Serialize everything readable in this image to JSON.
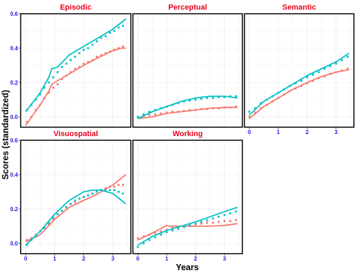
{
  "chart_data": {
    "type": "line",
    "xlabel": "Years",
    "ylabel": "Scores (standardized)",
    "colors": {
      "series_a": "#F8766D",
      "series_b": "#00BFC4",
      "title": "#E8001C",
      "ticks": "#1A1AE6"
    },
    "grid": true,
    "x_ticks": [
      "0",
      "1",
      "2",
      "3"
    ],
    "panels": [
      {
        "title": "Episodic",
        "y_ticks": [
          "0.0",
          "0.2",
          "0.4",
          "0.6"
        ],
        "series": [
          {
            "color": "series_a",
            "line_x": [
              0,
              0.5,
              0.8,
              0.9,
              1.1,
              1.5,
              2.0,
              2.5,
              3.0,
              3.3,
              3.45
            ],
            "line_y": [
              -0.05,
              0.07,
              0.15,
              0.19,
              0.21,
              0.25,
              0.3,
              0.345,
              0.385,
              0.4,
              0.4
            ],
            "points_x": [
              0.05,
              0.2,
              0.35,
              0.5,
              0.65,
              0.8,
              0.95,
              1.1,
              1.25,
              1.4,
              1.55,
              1.7,
              1.85,
              2.0,
              2.15,
              2.3,
              2.45,
              2.6,
              2.75,
              2.9,
              3.05,
              3.2,
              3.35
            ],
            "points_y": [
              -0.03,
              0.0,
              0.04,
              0.07,
              0.11,
              0.14,
              0.17,
              0.19,
              0.22,
              0.24,
              0.26,
              0.28,
              0.29,
              0.31,
              0.32,
              0.33,
              0.35,
              0.36,
              0.37,
              0.38,
              0.39,
              0.4,
              0.41
            ]
          },
          {
            "color": "series_b",
            "line_x": [
              0,
              0.5,
              0.8,
              0.9,
              1.1,
              1.5,
              2.0,
              2.5,
              3.0,
              3.45
            ],
            "line_y": [
              0.03,
              0.14,
              0.23,
              0.28,
              0.29,
              0.36,
              0.41,
              0.46,
              0.51,
              0.57
            ],
            "points_x": [
              0.05,
              0.2,
              0.35,
              0.5,
              0.65,
              0.8,
              0.95,
              1.1,
              1.25,
              1.4,
              1.55,
              1.7,
              1.85,
              2.0,
              2.15,
              2.3,
              2.45,
              2.6,
              2.75,
              2.9,
              3.05,
              3.2,
              3.35
            ],
            "points_y": [
              0.04,
              0.07,
              0.1,
              0.13,
              0.17,
              0.2,
              0.23,
              0.26,
              0.29,
              0.31,
              0.33,
              0.35,
              0.37,
              0.39,
              0.4,
              0.42,
              0.44,
              0.46,
              0.47,
              0.49,
              0.5,
              0.52,
              0.53
            ]
          }
        ]
      },
      {
        "title": "Perceptual",
        "y_ticks": [],
        "series": [
          {
            "color": "series_a",
            "line_x": [
              0,
              0.5,
              1.0,
              1.5,
              2.0,
              2.5,
              3.0,
              3.45
            ],
            "line_y": [
              -0.01,
              0.0,
              0.02,
              0.03,
              0.04,
              0.05,
              0.055,
              0.055
            ],
            "points_x": [
              0.0,
              0.2,
              0.4,
              0.6,
              0.8,
              1.0,
              1.2,
              1.4,
              1.6,
              1.8,
              2.0,
              2.2,
              2.4,
              2.6,
              2.8,
              3.0,
              3.2,
              3.4
            ],
            "points_y": [
              0.0,
              0.005,
              0.01,
              0.015,
              0.02,
              0.025,
              0.03,
              0.03,
              0.035,
              0.04,
              0.04,
              0.045,
              0.045,
              0.05,
              0.05,
              0.055,
              0.055,
              0.06
            ]
          },
          {
            "color": "series_b",
            "line_x": [
              0,
              0.5,
              1.0,
              1.5,
              2.0,
              2.5,
              3.0,
              3.45
            ],
            "line_y": [
              -0.01,
              0.03,
              0.06,
              0.09,
              0.11,
              0.12,
              0.12,
              0.11
            ],
            "points_x": [
              0.0,
              0.2,
              0.4,
              0.6,
              0.8,
              1.0,
              1.2,
              1.4,
              1.6,
              1.8,
              2.0,
              2.2,
              2.4,
              2.6,
              2.8,
              3.0,
              3.2,
              3.4
            ],
            "points_y": [
              0.0,
              0.015,
              0.03,
              0.04,
              0.05,
              0.06,
              0.07,
              0.08,
              0.09,
              0.095,
              0.1,
              0.105,
              0.11,
              0.11,
              0.115,
              0.115,
              0.12,
              0.12
            ]
          }
        ]
      },
      {
        "title": "Semantic",
        "y_ticks": [],
        "series": [
          {
            "color": "series_a",
            "line_x": [
              0,
              0.5,
              1.0,
              1.5,
              2.0,
              2.5,
              3.0,
              3.45
            ],
            "line_y": [
              -0.01,
              0.06,
              0.11,
              0.16,
              0.2,
              0.235,
              0.26,
              0.275
            ],
            "points_x": [
              0.0,
              0.2,
              0.4,
              0.6,
              0.8,
              1.0,
              1.2,
              1.4,
              1.6,
              1.8,
              2.0,
              2.2,
              2.4,
              2.6,
              2.8,
              3.0,
              3.2,
              3.4
            ],
            "points_y": [
              0.0,
              0.025,
              0.05,
              0.07,
              0.09,
              0.11,
              0.13,
              0.15,
              0.165,
              0.18,
              0.195,
              0.21,
              0.225,
              0.235,
              0.25,
              0.26,
              0.27,
              0.28
            ]
          },
          {
            "color": "series_b",
            "line_x": [
              0,
              0.5,
              1.0,
              1.5,
              2.0,
              2.5,
              3.0,
              3.45
            ],
            "line_y": [
              0.01,
              0.09,
              0.14,
              0.19,
              0.24,
              0.28,
              0.32,
              0.37
            ],
            "points_x": [
              0.0,
              0.2,
              0.4,
              0.6,
              0.8,
              1.0,
              1.2,
              1.4,
              1.6,
              1.8,
              2.0,
              2.2,
              2.4,
              2.6,
              2.8,
              3.0,
              3.2,
              3.4
            ],
            "points_y": [
              0.03,
              0.05,
              0.08,
              0.1,
              0.12,
              0.14,
              0.16,
              0.18,
              0.195,
              0.21,
              0.23,
              0.245,
              0.26,
              0.28,
              0.295,
              0.31,
              0.33,
              0.35
            ]
          }
        ]
      },
      {
        "title": "Visuospatial",
        "y_ticks": [
          "0.0",
          "0.2",
          "0.4",
          "0.6"
        ],
        "series": [
          {
            "color": "series_a",
            "line_x": [
              0,
              0.5,
              1.0,
              1.5,
              2.0,
              2.5,
              3.0,
              3.45
            ],
            "line_y": [
              0.01,
              0.05,
              0.14,
              0.21,
              0.25,
              0.29,
              0.34,
              0.4
            ],
            "points_x": [
              0.05,
              0.2,
              0.35,
              0.5,
              0.65,
              0.8,
              0.95,
              1.1,
              1.25,
              1.4,
              1.55,
              1.7,
              1.85,
              2.0,
              2.15,
              2.3,
              2.45,
              2.6,
              2.75,
              2.9,
              3.05,
              3.2,
              3.35
            ],
            "points_y": [
              0.02,
              0.03,
              0.05,
              0.07,
              0.09,
              0.11,
              0.14,
              0.17,
              0.19,
              0.21,
              0.23,
              0.24,
              0.26,
              0.27,
              0.28,
              0.29,
              0.3,
              0.31,
              0.32,
              0.33,
              0.33,
              0.34,
              0.34
            ]
          },
          {
            "color": "series_b",
            "line_x": [
              0,
              0.5,
              1.0,
              1.5,
              2.0,
              2.3,
              2.6,
              3.0,
              3.45
            ],
            "line_y": [
              -0.01,
              0.07,
              0.17,
              0.25,
              0.3,
              0.31,
              0.31,
              0.29,
              0.23
            ],
            "points_x": [
              0.05,
              0.2,
              0.35,
              0.5,
              0.65,
              0.8,
              0.95,
              1.1,
              1.25,
              1.4,
              1.55,
              1.7,
              1.85,
              2.0,
              2.15,
              2.3,
              2.45,
              2.6,
              2.75,
              2.9,
              3.05,
              3.2,
              3.35
            ],
            "points_y": [
              -0.01,
              0.02,
              0.04,
              0.07,
              0.09,
              0.12,
              0.15,
              0.17,
              0.19,
              0.21,
              0.23,
              0.25,
              0.26,
              0.27,
              0.28,
              0.29,
              0.3,
              0.31,
              0.31,
              0.31,
              0.31,
              0.3,
              0.29
            ]
          }
        ]
      },
      {
        "title": "Working",
        "y_ticks": [],
        "series": [
          {
            "color": "series_a",
            "line_x": [
              0,
              0.5,
              0.9,
              1.0,
              1.1,
              1.5,
              2.0,
              2.5,
              3.0,
              3.45
            ],
            "line_y": [
              0.02,
              0.06,
              0.095,
              0.105,
              0.1,
              0.1,
              0.1,
              0.1,
              0.105,
              0.115
            ],
            "points_x": [
              0.0,
              0.2,
              0.4,
              0.6,
              0.8,
              1.0,
              1.2,
              1.4,
              1.6,
              1.8,
              2.0,
              2.2,
              2.4,
              2.6,
              2.8,
              3.0,
              3.2,
              3.4
            ],
            "points_y": [
              0.03,
              0.04,
              0.05,
              0.06,
              0.07,
              0.08,
              0.09,
              0.095,
              0.1,
              0.105,
              0.11,
              0.115,
              0.12,
              0.12,
              0.125,
              0.13,
              0.13,
              0.135
            ]
          },
          {
            "color": "series_b",
            "line_x": [
              0,
              0.5,
              1.0,
              1.5,
              2.0,
              2.5,
              3.0,
              3.45
            ],
            "line_y": [
              -0.01,
              0.04,
              0.075,
              0.1,
              0.125,
              0.155,
              0.185,
              0.21
            ],
            "points_x": [
              0.0,
              0.2,
              0.4,
              0.6,
              0.8,
              1.0,
              1.2,
              1.4,
              1.6,
              1.8,
              2.0,
              2.2,
              2.4,
              2.6,
              2.8,
              3.0,
              3.2,
              3.4
            ],
            "points_y": [
              -0.02,
              0.0,
              0.02,
              0.035,
              0.05,
              0.065,
              0.075,
              0.085,
              0.095,
              0.105,
              0.115,
              0.125,
              0.135,
              0.145,
              0.155,
              0.165,
              0.175,
              0.185
            ]
          }
        ]
      }
    ]
  }
}
